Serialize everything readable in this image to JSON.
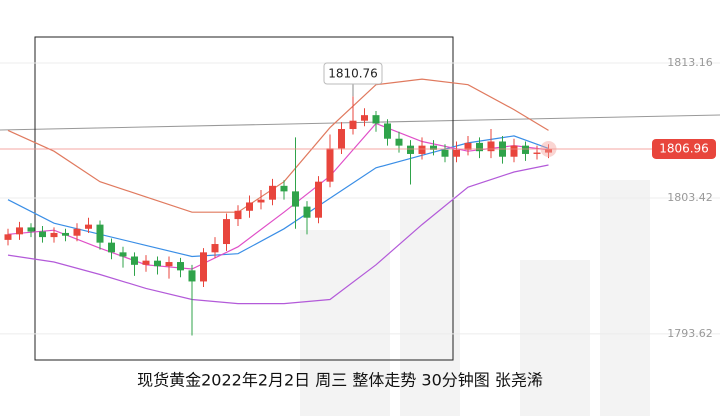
{
  "chart_data": {
    "type": "candlestick",
    "title": "现货黄金2022年2月2日 周三  整体走势  30分钟图  张尧浠",
    "open": [
      1800.4,
      1800.8,
      1801.3,
      1801.0,
      1800.6,
      1800.9,
      1800.7,
      1801.2,
      1801.5,
      1800.2,
      1799.5,
      1799.2,
      1798.6,
      1798.9,
      1798.5,
      1798.8,
      1798.2,
      1797.4,
      1799.5,
      1800.1,
      1801.9,
      1802.5,
      1803.1,
      1803.3,
      1804.3,
      1803.9,
      1802.8,
      1802.0,
      1804.6,
      1807.0,
      1808.4,
      1809.0,
      1809.4,
      1808.8,
      1807.7,
      1807.2,
      1806.6,
      1807.2,
      1806.9,
      1806.4,
      1806.9,
      1807.4,
      1806.8,
      1807.5,
      1806.4,
      1807.2,
      1806.6,
      1806.7
    ],
    "high": [
      1801.2,
      1801.7,
      1801.6,
      1801.4,
      1801.3,
      1801.2,
      1801.6,
      1802.0,
      1801.8,
      1800.5,
      1799.9,
      1799.5,
      1799.3,
      1799.2,
      1799.2,
      1799.1,
      1798.6,
      1799.8,
      1800.6,
      1802.3,
      1802.9,
      1803.6,
      1804.0,
      1804.8,
      1804.7,
      1807.8,
      1803.2,
      1805.0,
      1808.0,
      1808.9,
      1810.76,
      1809.9,
      1809.7,
      1809.1,
      1808.2,
      1807.6,
      1807.8,
      1807.6,
      1807.3,
      1807.5,
      1807.9,
      1807.8,
      1808.4,
      1807.9,
      1807.7,
      1807.5,
      1807.2,
      1807.3
    ],
    "low": [
      1800.0,
      1800.4,
      1800.6,
      1800.2,
      1800.2,
      1800.3,
      1800.3,
      1800.9,
      1799.7,
      1799.0,
      1798.4,
      1797.8,
      1798.1,
      1797.9,
      1797.6,
      1797.7,
      1793.5,
      1797.0,
      1799.1,
      1799.6,
      1801.4,
      1802.0,
      1802.6,
      1802.9,
      1803.3,
      1801.2,
      1800.8,
      1801.6,
      1804.2,
      1806.6,
      1808.0,
      1808.6,
      1808.2,
      1807.2,
      1806.7,
      1804.4,
      1806.2,
      1806.5,
      1806.0,
      1806.0,
      1806.5,
      1806.3,
      1806.3,
      1805.9,
      1806.0,
      1806.1,
      1806.2,
      1806.3
    ],
    "close": [
      1800.8,
      1801.3,
      1801.0,
      1800.6,
      1800.9,
      1800.7,
      1801.2,
      1801.5,
      1800.2,
      1799.5,
      1799.2,
      1798.6,
      1798.9,
      1798.5,
      1798.8,
      1798.2,
      1797.4,
      1799.5,
      1800.1,
      1801.9,
      1802.5,
      1803.1,
      1803.3,
      1804.3,
      1803.9,
      1802.8,
      1802.0,
      1804.6,
      1807.0,
      1808.4,
      1809.0,
      1809.4,
      1808.8,
      1807.7,
      1807.2,
      1806.6,
      1807.2,
      1806.9,
      1806.4,
      1806.9,
      1807.4,
      1806.8,
      1807.5,
      1806.4,
      1807.2,
      1806.6,
      1806.7,
      1806.96
    ],
    "up_color": "#e8453c",
    "down_color": "#2fa34a",
    "lines": [
      {
        "color": "#e07a5f",
        "x": [
          0,
          4,
          8,
          12,
          16,
          20,
          24,
          28,
          32,
          36,
          40,
          44,
          47
        ],
        "values": [
          1808.3,
          1806.8,
          1804.6,
          1803.5,
          1802.4,
          1802.4,
          1804.6,
          1808.5,
          1811.6,
          1812.0,
          1811.6,
          1809.8,
          1808.3
        ]
      },
      {
        "color": "#b35ad9",
        "x": [
          0,
          4,
          8,
          12,
          16,
          20,
          24,
          28,
          32,
          36,
          40,
          44,
          47
        ],
        "values": [
          1799.3,
          1798.8,
          1797.9,
          1796.9,
          1796.1,
          1795.8,
          1795.8,
          1796.1,
          1798.6,
          1801.5,
          1804.2,
          1805.3,
          1805.8
        ]
      },
      {
        "color": "#3a8ee6",
        "x": [
          0,
          4,
          8,
          12,
          16,
          20,
          24,
          28,
          32,
          36,
          40,
          44,
          47
        ],
        "values": [
          1803.3,
          1801.6,
          1800.8,
          1800.0,
          1799.2,
          1799.4,
          1801.2,
          1803.4,
          1805.6,
          1806.5,
          1807.4,
          1807.9,
          1807.0
        ]
      },
      {
        "color": "#e04fc8",
        "x": [
          0,
          4,
          8,
          12,
          16,
          20,
          24,
          28,
          32,
          36,
          40,
          44,
          47
        ],
        "values": [
          1800.8,
          1801.1,
          1799.8,
          1798.6,
          1798.3,
          1799.9,
          1802.4,
          1805.0,
          1808.8,
          1807.5,
          1806.8,
          1807.2,
          1806.9
        ]
      }
    ],
    "ylim": [
      1787.69,
      1817.71
    ],
    "yticks": [
      1793.62,
      1803.42,
      1813.16
    ],
    "last_price": 1806.96,
    "high_annotation": 1810.76
  }
}
